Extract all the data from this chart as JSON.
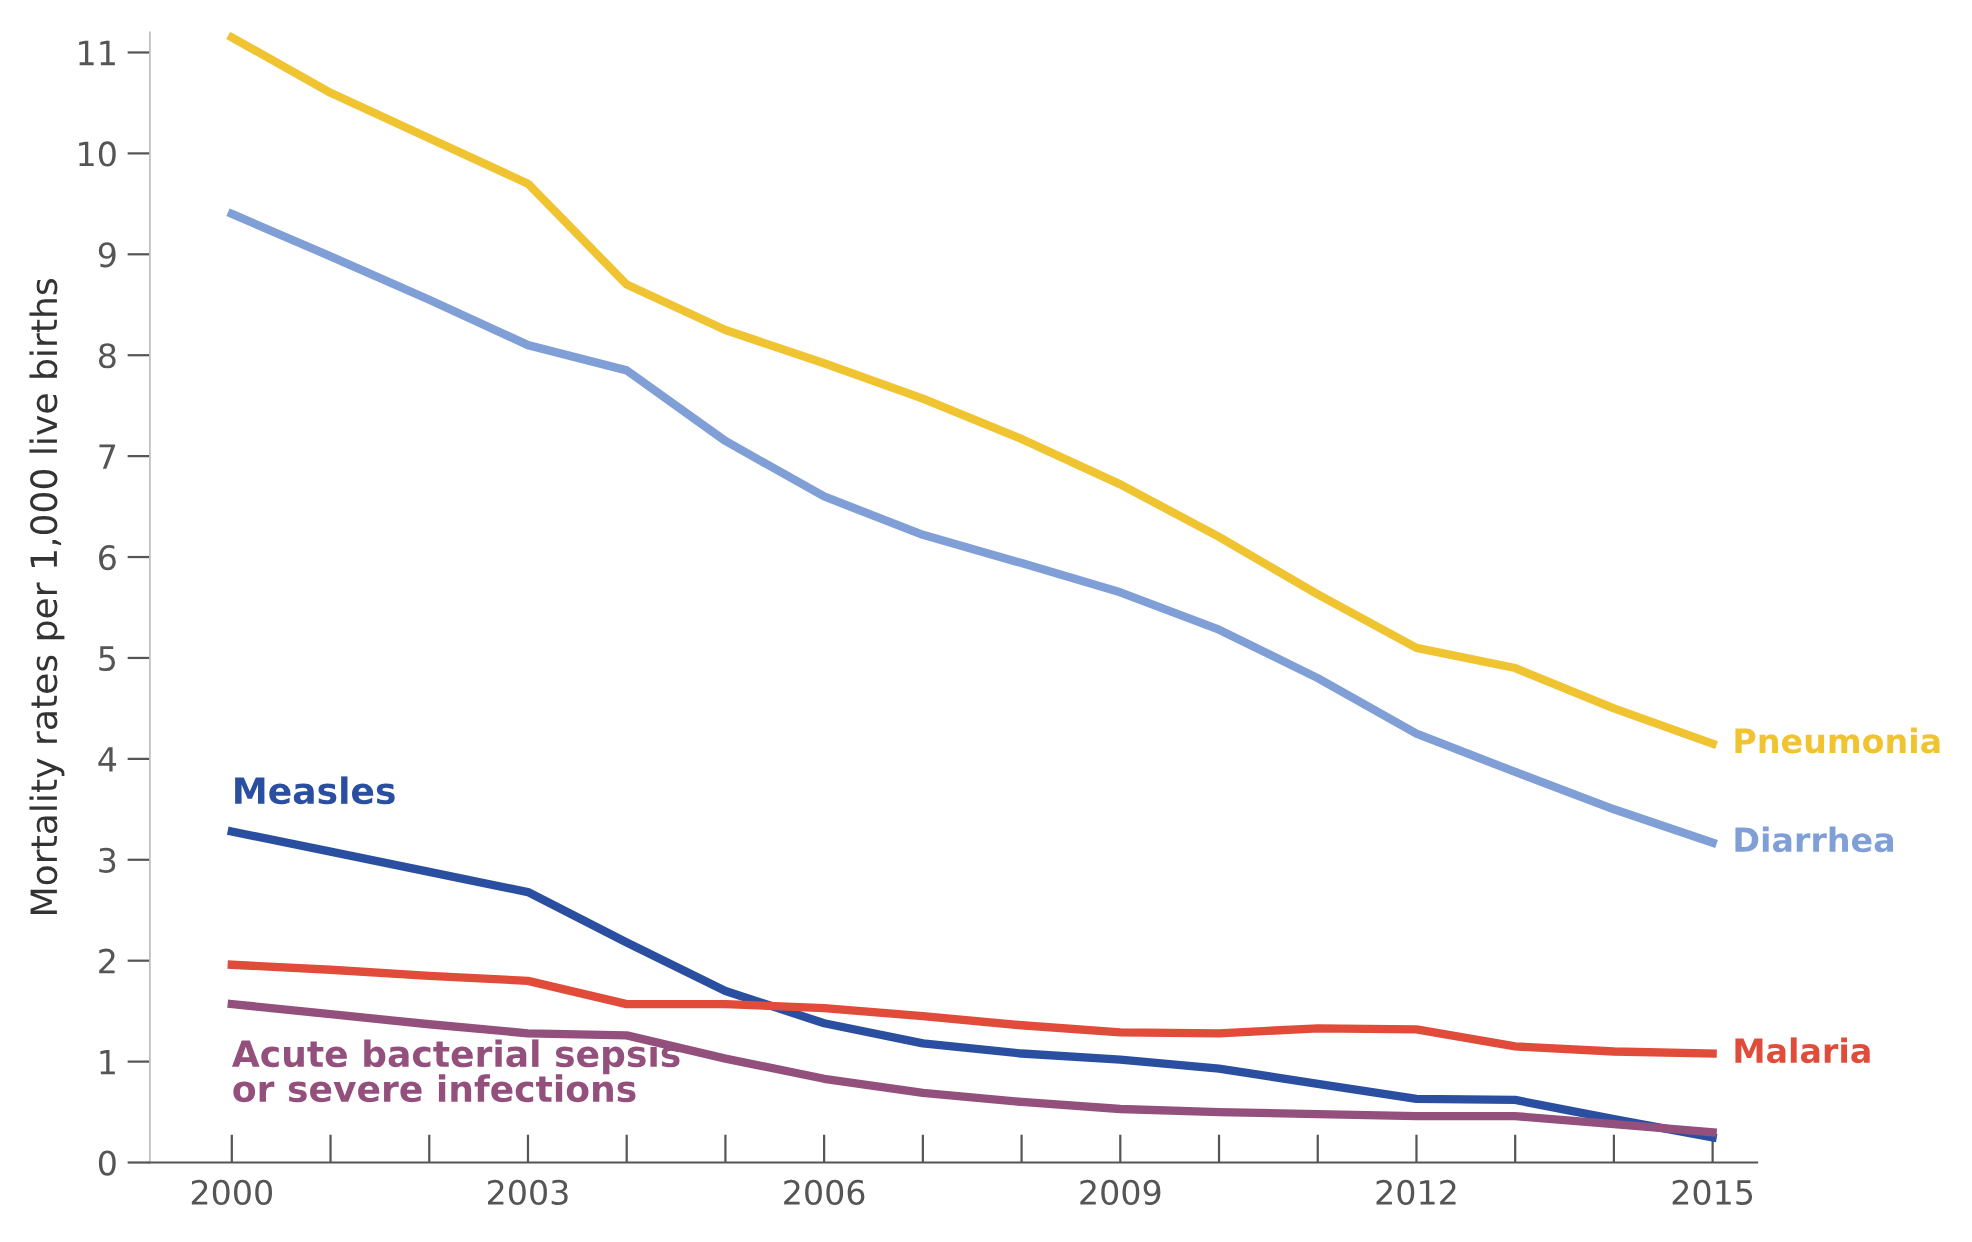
{
  "chart_data": {
    "type": "line",
    "ylabel": "Mortality rates per 1,000 live births",
    "x": [
      2000,
      2001,
      2002,
      2003,
      2004,
      2005,
      2006,
      2007,
      2008,
      2009,
      2010,
      2011,
      2012,
      2013,
      2014,
      2015
    ],
    "series": [
      {
        "name": "Pneumonia",
        "color": "#f0c330",
        "values": [
          11.15,
          10.6,
          10.15,
          9.7,
          8.7,
          8.25,
          7.92,
          7.57,
          7.17,
          6.72,
          6.2,
          5.63,
          5.1,
          4.9,
          4.5,
          4.15
        ]
      },
      {
        "name": "Diarrhea",
        "color": "#7f9fd6",
        "values": [
          9.4,
          8.98,
          8.55,
          8.1,
          7.85,
          7.15,
          6.6,
          6.22,
          5.94,
          5.65,
          5.28,
          4.8,
          4.25,
          3.87,
          3.5,
          3.17
        ]
      },
      {
        "name": "Measles",
        "color": "#2b4fa0",
        "values": [
          3.28,
          3.08,
          2.88,
          2.68,
          2.18,
          1.7,
          1.38,
          1.18,
          1.08,
          1.02,
          0.93,
          0.78,
          0.63,
          0.62,
          0.43,
          0.25
        ]
      },
      {
        "name": "Malaria",
        "color": "#e04b3a",
        "values": [
          1.96,
          1.91,
          1.85,
          1.8,
          1.57,
          1.57,
          1.53,
          1.45,
          1.36,
          1.29,
          1.28,
          1.33,
          1.32,
          1.15,
          1.1,
          1.08
        ]
      },
      {
        "name": "Acute bacterial sepsis\nor severe infections",
        "color": "#94507c",
        "values": [
          1.57,
          1.47,
          1.37,
          1.28,
          1.26,
          1.03,
          0.83,
          0.69,
          0.6,
          0.53,
          0.5,
          0.48,
          0.46,
          0.46,
          0.38,
          0.3
        ]
      }
    ],
    "xlim": [
      1999.17,
      2015.45
    ],
    "ylim": [
      0,
      11.2
    ],
    "xticks": [
      2000,
      {
        "value": 2001,
        "label": null
      },
      {
        "value": 2002,
        "label": null
      },
      2003,
      {
        "value": 2004,
        "label": null
      },
      {
        "value": 2005,
        "label": null
      },
      2006,
      {
        "value": 2007,
        "label": null
      },
      {
        "value": 2008,
        "label": null
      },
      2009,
      {
        "value": 2010,
        "label": null
      },
      {
        "value": 2011,
        "label": null
      },
      2012,
      {
        "value": 2013,
        "label": null
      },
      {
        "value": 2014,
        "label": null
      },
      2015
    ],
    "yticks": [
      0,
      1,
      2,
      3,
      4,
      5,
      6,
      7,
      8,
      9,
      10,
      11
    ],
    "grid": false,
    "legend": false,
    "marker": "none",
    "line_style": "solid"
  }
}
